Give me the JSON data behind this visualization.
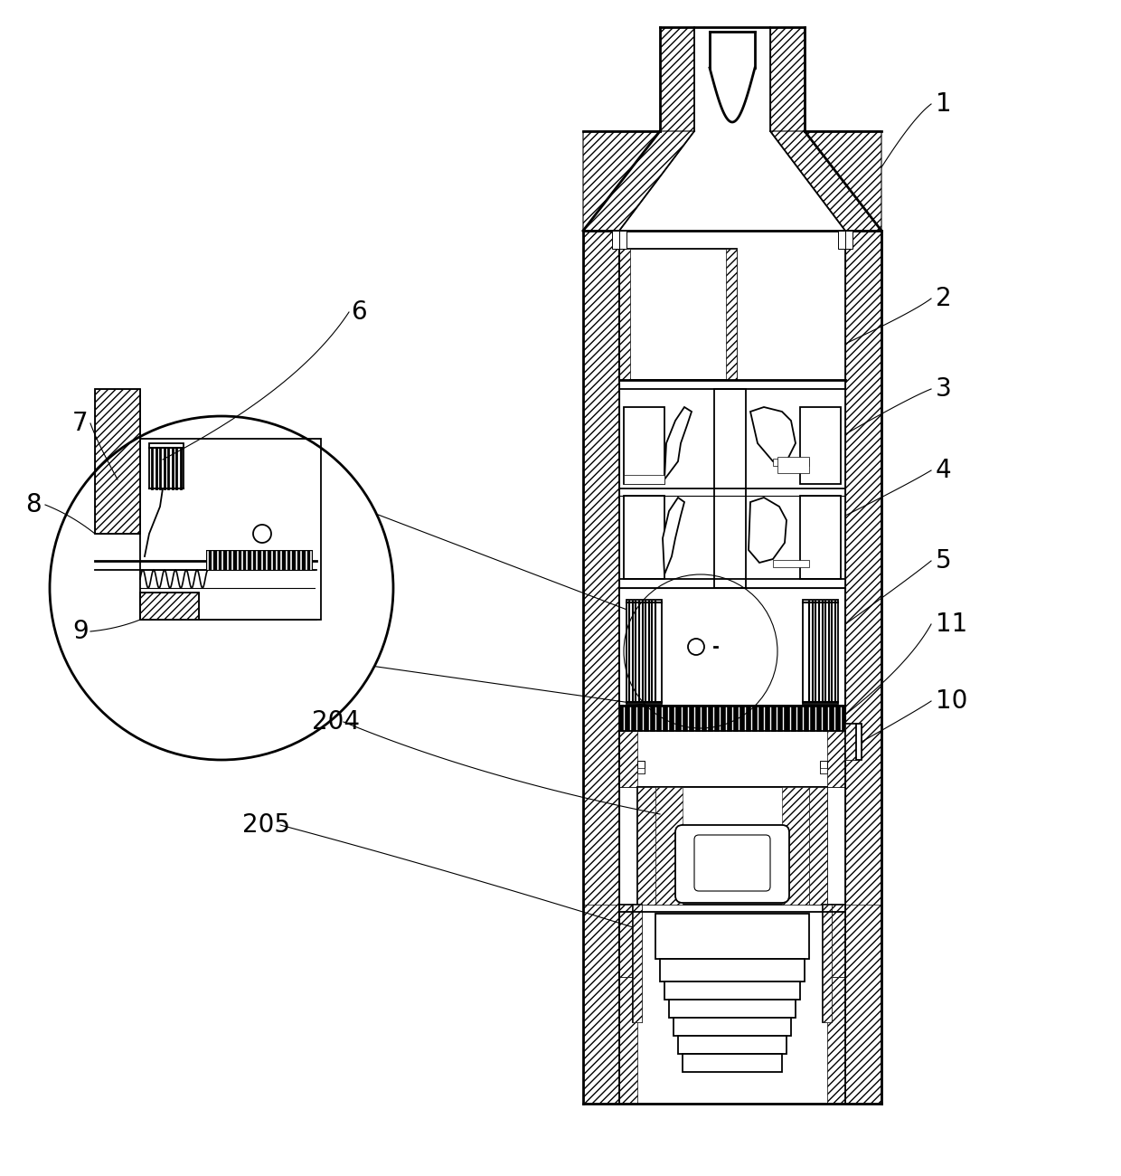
{
  "background_color": "#ffffff",
  "line_color": "#000000",
  "label_font_size": 20,
  "figure_width": 12.4,
  "figure_height": 13.0,
  "dpi": 100
}
